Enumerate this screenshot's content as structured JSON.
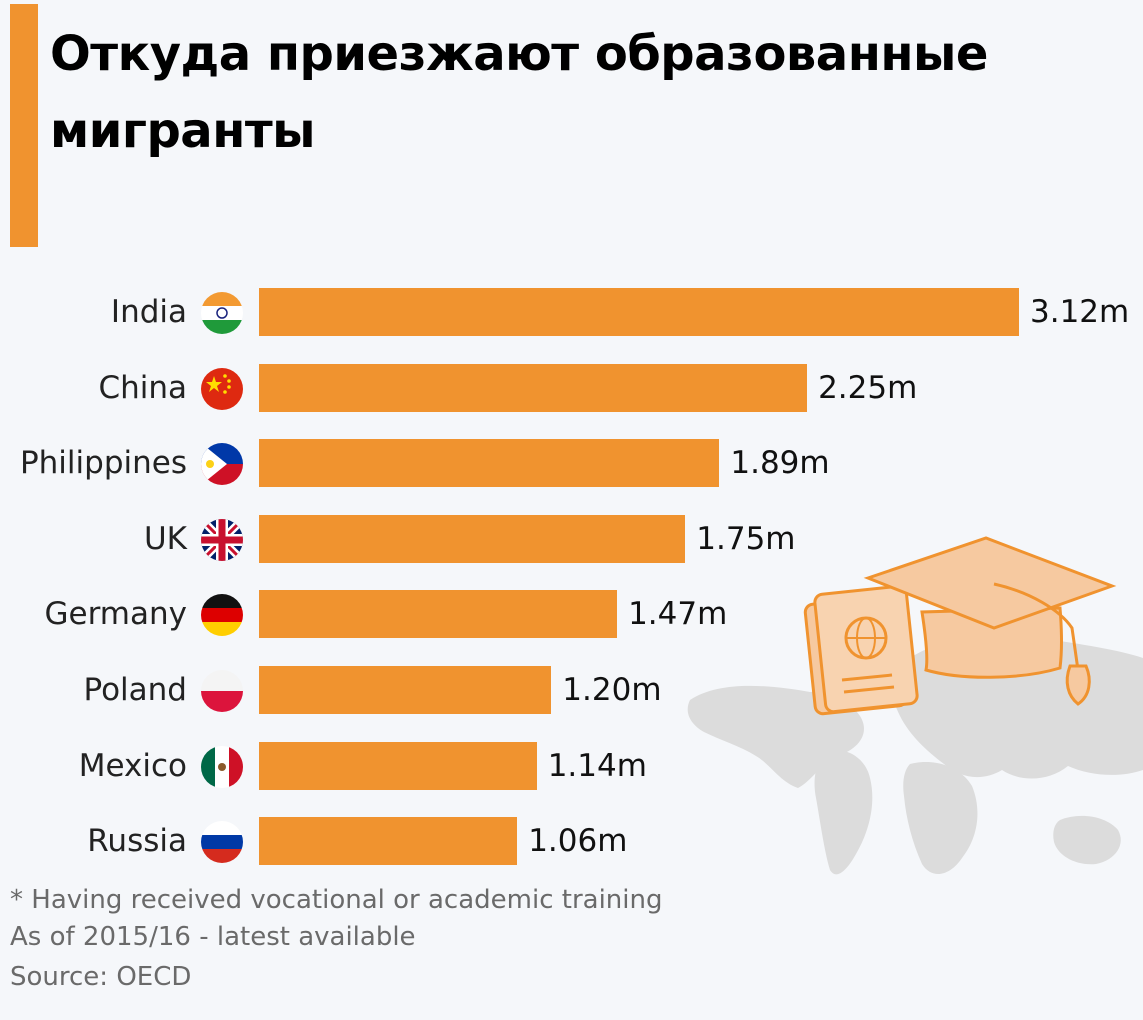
{
  "title": "Откуда приезжают образованные мигранты",
  "accent_color": "#f0932f",
  "chart_data": {
    "type": "bar",
    "orientation": "horizontal",
    "categories": [
      "India",
      "China",
      "Philippines",
      "UK",
      "Germany",
      "Poland",
      "Mexico",
      "Russia"
    ],
    "values": [
      3.12,
      2.25,
      1.89,
      1.75,
      1.47,
      1.2,
      1.14,
      1.06
    ],
    "value_labels": [
      "3.12m",
      "2.25m",
      "1.89m",
      "1.75m",
      "1.47m",
      "1.20m",
      "1.14m",
      "1.06m"
    ],
    "unit": "m",
    "xlim": [
      0,
      3.12
    ],
    "bar_color": "#f0932f",
    "flags": [
      "india-flag-icon",
      "china-flag-icon",
      "philippines-flag-icon",
      "uk-flag-icon",
      "germany-flag-icon",
      "poland-flag-icon",
      "mexico-flag-icon",
      "russia-flag-icon"
    ]
  },
  "footnotes": {
    "note": "* Having received vocational or academic training",
    "date": "As of 2015/16 - latest available",
    "source": "Source: OECD"
  }
}
